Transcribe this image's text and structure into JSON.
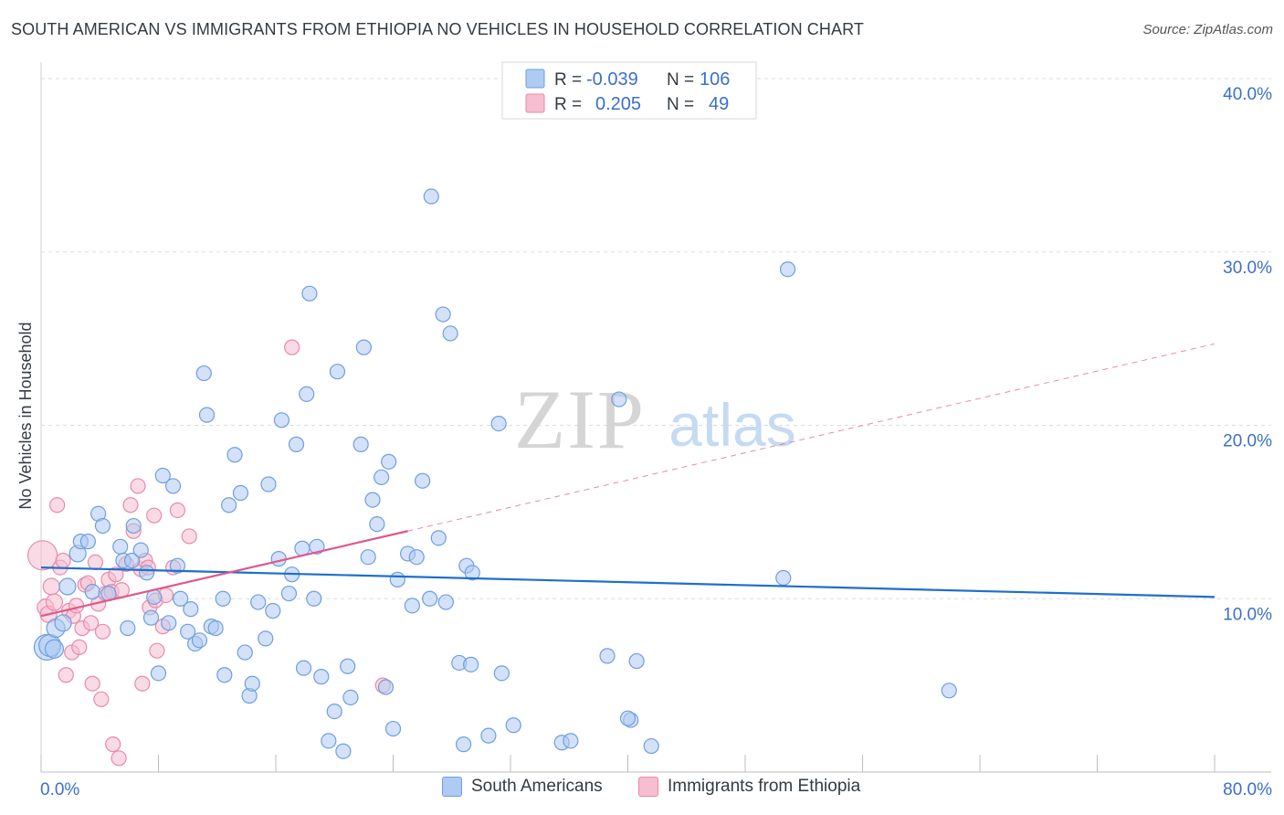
{
  "header": {
    "title": "SOUTH AMERICAN VS IMMIGRANTS FROM ETHIOPIA NO VEHICLES IN HOUSEHOLD CORRELATION CHART",
    "source": "Source: ZipAtlas.com"
  },
  "watermark": {
    "zip": "ZIP",
    "atlas": "atlas"
  },
  "legend_top": [
    {
      "r_label": "R =",
      "r_value": "-0.039",
      "n_label": "N =",
      "n_value": "106"
    },
    {
      "r_label": "R =",
      "r_value": "0.205",
      "n_label": "N =",
      "n_value": "49"
    }
  ],
  "legend_bottom": [
    {
      "label": "South Americans"
    },
    {
      "label": "Immigrants from Ethiopia"
    }
  ],
  "colors": {
    "blue_fill": "#aecbf3",
    "blue_stroke": "#6f9ee0",
    "blue_line": "#1f6fcf",
    "pink_fill": "#f6bed0",
    "pink_stroke": "#e88aa8",
    "pink_line": "#e0588a",
    "tick_text": "#3b6fc9",
    "grid": "#dddddd"
  },
  "chart_data": {
    "type": "scatter",
    "title": "SOUTH AMERICAN VS IMMIGRANTS FROM ETHIOPIA NO VEHICLES IN HOUSEHOLD CORRELATION CHART",
    "xlabel": "",
    "ylabel": "No Vehicles in Household",
    "xlim": [
      0,
      80
    ],
    "ylim": [
      0,
      40
    ],
    "x_tick_labels": [
      "0.0%",
      "80.0%"
    ],
    "y_ticks": [
      10,
      20,
      30,
      40
    ],
    "y_tick_labels": [
      "10.0%",
      "20.0%",
      "30.0%",
      "40.0%"
    ],
    "grid": true,
    "legend_placement": "top-center",
    "series": [
      {
        "name": "South Americans",
        "r": -0.039,
        "n": 106,
        "trend": {
          "x": [
            0,
            80
          ],
          "y": [
            11.8,
            10.1
          ]
        },
        "points": [
          [
            0.4,
            7.2,
            14
          ],
          [
            0.6,
            7.3,
            12
          ],
          [
            0.9,
            7.1,
            10
          ],
          [
            1.0,
            8.3,
            10
          ],
          [
            1.5,
            8.6,
            9
          ],
          [
            1.8,
            10.7,
            9
          ],
          [
            2.5,
            12.6,
            9
          ],
          [
            2.7,
            13.3,
            8
          ],
          [
            3.2,
            13.3,
            8
          ],
          [
            3.5,
            10.4,
            8
          ],
          [
            3.9,
            14.9,
            8
          ],
          [
            4.2,
            14.2,
            8
          ],
          [
            4.6,
            10.3,
            8
          ],
          [
            5.4,
            13.0,
            8
          ],
          [
            5.6,
            12.2,
            8
          ],
          [
            6.2,
            12.2,
            8
          ],
          [
            6.3,
            14.2,
            8
          ],
          [
            6.8,
            12.8,
            8
          ],
          [
            7.2,
            11.5,
            8
          ],
          [
            7.5,
            8.9,
            8
          ],
          [
            5.9,
            8.3,
            8
          ],
          [
            7.7,
            10.1,
            8
          ],
          [
            8.0,
            5.7,
            8
          ],
          [
            8.3,
            17.1,
            8
          ],
          [
            8.7,
            8.6,
            8
          ],
          [
            9.0,
            16.5,
            8
          ],
          [
            9.3,
            11.9,
            8
          ],
          [
            9.5,
            10.0,
            8
          ],
          [
            10.0,
            8.1,
            8
          ],
          [
            10.2,
            9.4,
            8
          ],
          [
            10.5,
            7.4,
            8
          ],
          [
            10.8,
            7.6,
            8
          ],
          [
            11.1,
            23.0,
            8
          ],
          [
            11.3,
            20.6,
            8
          ],
          [
            11.6,
            8.4,
            8
          ],
          [
            11.9,
            8.3,
            8
          ],
          [
            12.4,
            10.0,
            8
          ],
          [
            12.5,
            5.6,
            8
          ],
          [
            12.8,
            15.4,
            8
          ],
          [
            13.2,
            18.3,
            8
          ],
          [
            13.6,
            16.1,
            8
          ],
          [
            13.9,
            6.9,
            8
          ],
          [
            14.2,
            4.4,
            8
          ],
          [
            14.4,
            5.1,
            8
          ],
          [
            14.8,
            9.8,
            8
          ],
          [
            15.3,
            7.7,
            8
          ],
          [
            15.5,
            16.6,
            8
          ],
          [
            15.8,
            9.3,
            8
          ],
          [
            16.2,
            12.3,
            8
          ],
          [
            16.4,
            20.3,
            8
          ],
          [
            16.9,
            10.3,
            8
          ],
          [
            17.1,
            11.4,
            8
          ],
          [
            17.4,
            18.9,
            8
          ],
          [
            17.8,
            12.9,
            8
          ],
          [
            17.9,
            6.0,
            8
          ],
          [
            18.1,
            21.8,
            8
          ],
          [
            18.3,
            27.6,
            8
          ],
          [
            18.6,
            10.0,
            8
          ],
          [
            18.8,
            13.0,
            8
          ],
          [
            19.1,
            5.5,
            8
          ],
          [
            19.6,
            1.8,
            8
          ],
          [
            20.0,
            3.5,
            8
          ],
          [
            20.2,
            23.1,
            8
          ],
          [
            20.6,
            1.2,
            8
          ],
          [
            20.9,
            6.1,
            8
          ],
          [
            21.1,
            4.3,
            8
          ],
          [
            21.8,
            18.9,
            8
          ],
          [
            22.0,
            24.5,
            8
          ],
          [
            22.3,
            12.4,
            8
          ],
          [
            22.6,
            15.7,
            8
          ],
          [
            22.9,
            14.3,
            8
          ],
          [
            23.2,
            17.0,
            8
          ],
          [
            23.5,
            4.9,
            8
          ],
          [
            23.7,
            17.9,
            8
          ],
          [
            24.0,
            2.5,
            8
          ],
          [
            24.3,
            11.1,
            8
          ],
          [
            25.0,
            12.6,
            8
          ],
          [
            25.3,
            9.6,
            8
          ],
          [
            25.6,
            12.4,
            8
          ],
          [
            26.0,
            16.8,
            8
          ],
          [
            26.5,
            10.0,
            8
          ],
          [
            26.6,
            33.2,
            8
          ],
          [
            27.1,
            13.5,
            8
          ],
          [
            27.4,
            26.4,
            8
          ],
          [
            27.6,
            9.8,
            8
          ],
          [
            27.9,
            25.3,
            8
          ],
          [
            28.5,
            6.3,
            8
          ],
          [
            28.8,
            1.6,
            8
          ],
          [
            29.0,
            11.9,
            8
          ],
          [
            29.4,
            11.5,
            8
          ],
          [
            29.3,
            6.2,
            8
          ],
          [
            30.5,
            2.1,
            8
          ],
          [
            31.2,
            20.1,
            8
          ],
          [
            31.4,
            5.7,
            8
          ],
          [
            32.2,
            2.7,
            8
          ],
          [
            35.5,
            1.7,
            8
          ],
          [
            36.1,
            1.8,
            8
          ],
          [
            38.6,
            6.7,
            8
          ],
          [
            39.4,
            21.5,
            8
          ],
          [
            40.2,
            3.0,
            8
          ],
          [
            40.6,
            6.4,
            8
          ],
          [
            41.6,
            1.5,
            8
          ],
          [
            50.6,
            11.2,
            8
          ],
          [
            50.9,
            29.0,
            8
          ],
          [
            61.9,
            4.7,
            8
          ],
          [
            40.0,
            3.1,
            8
          ]
        ]
      },
      {
        "name": "Immigrants from Ethiopia",
        "r": 0.205,
        "n": 49,
        "trend": {
          "x": [
            0,
            25
          ],
          "y": [
            9.0,
            13.9
          ]
        },
        "trend_extrapolated": {
          "x": [
            25,
            80
          ],
          "y": [
            13.9,
            24.7
          ]
        },
        "points": [
          [
            0.1,
            12.5,
            16
          ],
          [
            0.3,
            9.5,
            9
          ],
          [
            0.5,
            9.1,
            9
          ],
          [
            0.7,
            10.7,
            9
          ],
          [
            0.9,
            9.8,
            9
          ],
          [
            1.1,
            15.4,
            8
          ],
          [
            1.3,
            11.8,
            8
          ],
          [
            1.5,
            12.2,
            8
          ],
          [
            1.7,
            5.6,
            8
          ],
          [
            1.9,
            9.3,
            8
          ],
          [
            2.1,
            6.9,
            8
          ],
          [
            2.2,
            9.0,
            8
          ],
          [
            2.4,
            9.6,
            8
          ],
          [
            2.6,
            7.2,
            8
          ],
          [
            2.8,
            8.3,
            8
          ],
          [
            3.0,
            10.8,
            8
          ],
          [
            3.2,
            10.9,
            8
          ],
          [
            3.4,
            8.6,
            8
          ],
          [
            3.5,
            5.1,
            8
          ],
          [
            3.7,
            12.1,
            8
          ],
          [
            3.9,
            9.7,
            8
          ],
          [
            4.1,
            4.2,
            8
          ],
          [
            4.2,
            8.1,
            8
          ],
          [
            4.4,
            10.3,
            8
          ],
          [
            4.6,
            11.1,
            8
          ],
          [
            4.8,
            10.4,
            8
          ],
          [
            4.9,
            1.6,
            8
          ],
          [
            5.1,
            11.4,
            8
          ],
          [
            5.3,
            0.8,
            8
          ],
          [
            5.5,
            10.5,
            8
          ],
          [
            5.8,
            12.0,
            8
          ],
          [
            6.1,
            15.4,
            8
          ],
          [
            6.3,
            13.9,
            8
          ],
          [
            6.6,
            16.5,
            8
          ],
          [
            6.8,
            11.7,
            8
          ],
          [
            6.9,
            5.1,
            8
          ],
          [
            7.1,
            12.2,
            8
          ],
          [
            7.3,
            11.8,
            8
          ],
          [
            7.4,
            9.5,
            8
          ],
          [
            7.7,
            14.8,
            8
          ],
          [
            7.8,
            9.9,
            8
          ],
          [
            7.9,
            7.0,
            8
          ],
          [
            8.3,
            8.4,
            8
          ],
          [
            8.5,
            10.2,
            8
          ],
          [
            9.0,
            11.8,
            8
          ],
          [
            9.3,
            15.1,
            8
          ],
          [
            10.1,
            13.6,
            8
          ],
          [
            17.1,
            24.5,
            8
          ],
          [
            23.3,
            5.0,
            8
          ]
        ]
      }
    ]
  }
}
